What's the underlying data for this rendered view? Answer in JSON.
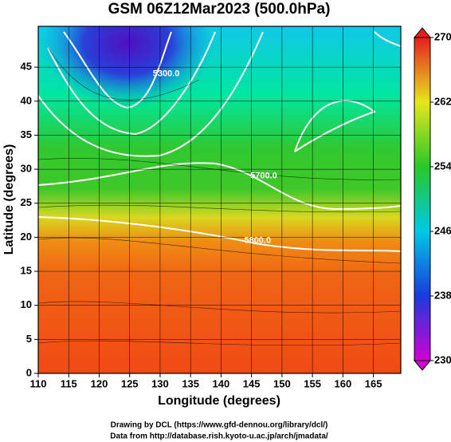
{
  "chart_data": {
    "type": "map",
    "title": "GSM 06Z12Mar2023 (500.0hPa)",
    "x_label": "Longitude (degrees)",
    "y_label": "Latitude  (degrees)",
    "xlim": [
      110,
      169.5
    ],
    "ylim": [
      0,
      51
    ],
    "xticks": [
      110,
      115,
      120,
      125,
      130,
      135,
      140,
      145,
      150,
      155,
      160,
      165
    ],
    "yticks": [
      0,
      5,
      10,
      15,
      20,
      25,
      30,
      35,
      40,
      45
    ],
    "grid": true,
    "colorbar": {
      "range": [
        230,
        270
      ],
      "ticks": [
        230,
        238,
        246,
        254,
        262,
        270
      ],
      "colors": [
        "#d400d4",
        "#1a3adc",
        "#00c8e6",
        "#28c828",
        "#e6e61e",
        "#e61e1e"
      ]
    },
    "contour_labels": [
      {
        "text": "5300.0",
        "x": 131,
        "y": 44
      },
      {
        "text": "5700.0",
        "x": 147,
        "y": 29
      },
      {
        "text": "5800.0",
        "x": 146,
        "y": 19.5
      }
    ],
    "footer": [
      "Drawing by DCL (https://www.gfd-dennou.org/library/dcl/)",
      "Data from http://database.rish.kyoto-u.ac.jp/arch/jmadata/"
    ]
  }
}
